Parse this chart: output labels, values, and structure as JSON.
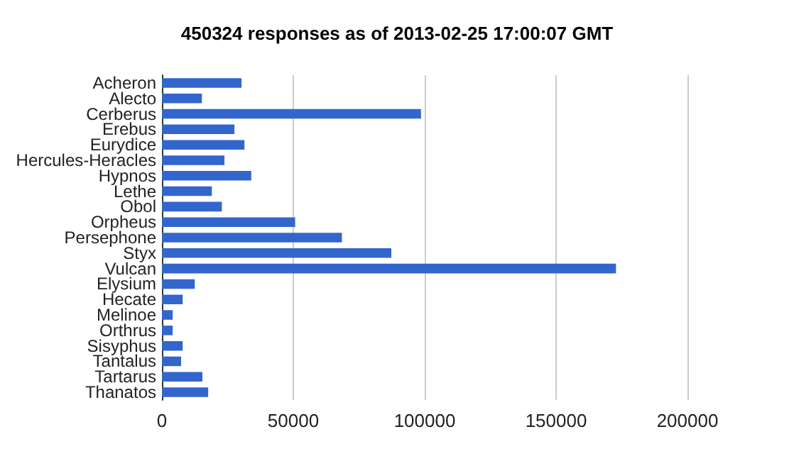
{
  "chart_data": {
    "type": "bar",
    "orientation": "horizontal",
    "title": "450324 responses as of 2013-02-25 17:00:07 GMT",
    "categories": [
      "Acheron",
      "Alecto",
      "Cerberus",
      "Erebus",
      "Eurydice",
      "Hercules-Heracles",
      "Hypnos",
      "Lethe",
      "Obol",
      "Orpheus",
      "Persephone",
      "Styx",
      "Vulcan",
      "Elysium",
      "Hecate",
      "Melinoe",
      "Orthrus",
      "Sisyphus",
      "Tantalus",
      "Tartarus",
      "Thanatos"
    ],
    "values": [
      30300,
      15200,
      98600,
      27600,
      31400,
      23800,
      34000,
      19000,
      22800,
      50700,
      68500,
      87300,
      172800,
      12500,
      7900,
      4100,
      4100,
      7900,
      7300,
      15400,
      17600
    ],
    "color": "#3366cc",
    "xlim": [
      0,
      200000
    ],
    "xticks": [
      0,
      50000,
      100000,
      150000,
      200000
    ],
    "grid": "x"
  }
}
